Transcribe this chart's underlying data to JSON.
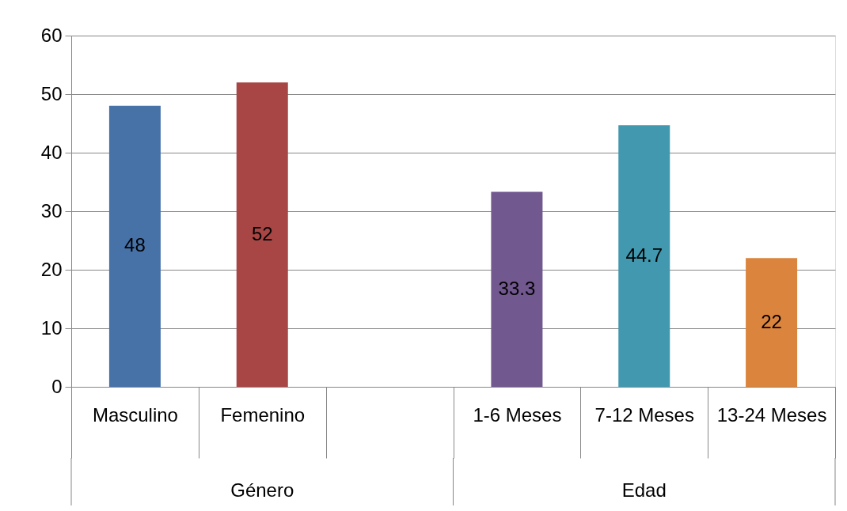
{
  "chart_data": {
    "type": "bar",
    "categories": [
      "Masculino",
      "Femenino",
      null,
      "1-6 Meses",
      "7-12 Meses",
      "13-24 Meses"
    ],
    "values": [
      48,
      52,
      null,
      33.3,
      44.7,
      22
    ],
    "colors": [
      "#4672a8",
      "#a74644",
      "#ffffff",
      "#71588f",
      "#4298ae",
      "#db843d"
    ],
    "ylim": [
      0,
      60
    ],
    "yticks": [
      0,
      10,
      20,
      30,
      40,
      50,
      60
    ],
    "grid": "y",
    "data_labels": true,
    "annotations": [
      "Género",
      "Edad"
    ]
  }
}
